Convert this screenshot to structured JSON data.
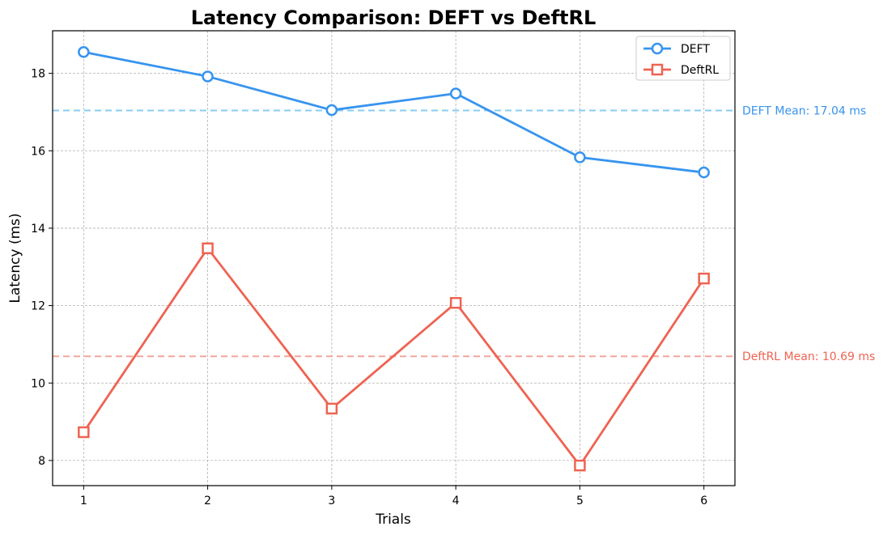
{
  "chart_data": {
    "type": "line",
    "title": "Latency Comparison: DEFT vs DeftRL",
    "xlabel": "Trials",
    "ylabel": "Latency (ms)",
    "x": [
      1,
      2,
      3,
      4,
      5,
      6
    ],
    "xlim": [
      0.75,
      6.25
    ],
    "ylim": [
      7.35,
      19.1
    ],
    "xticks": [
      1,
      2,
      3,
      4,
      5,
      6
    ],
    "yticks": [
      8,
      10,
      12,
      14,
      16,
      18
    ],
    "grid": true,
    "legend_position": "top-right",
    "series": [
      {
        "name": "DEFT",
        "values": [
          18.55,
          17.92,
          17.05,
          17.48,
          15.83,
          15.44
        ],
        "color": "#3794ef",
        "marker": "circle"
      },
      {
        "name": "DeftRL",
        "values": [
          8.73,
          13.48,
          9.34,
          12.07,
          7.87,
          12.7
        ],
        "color": "#ef6352",
        "marker": "square"
      }
    ],
    "reference_lines": [
      {
        "series": "DEFT",
        "value": 17.04,
        "label": "DEFT Mean: 17.04 ms",
        "color": "#87cdf0"
      },
      {
        "series": "DeftRL",
        "value": 10.69,
        "label": "DeftRL Mean: 10.69 ms",
        "color": "#f4a59b"
      }
    ],
    "mean_label_colors": [
      "#3794ef",
      "#ef6352"
    ]
  }
}
